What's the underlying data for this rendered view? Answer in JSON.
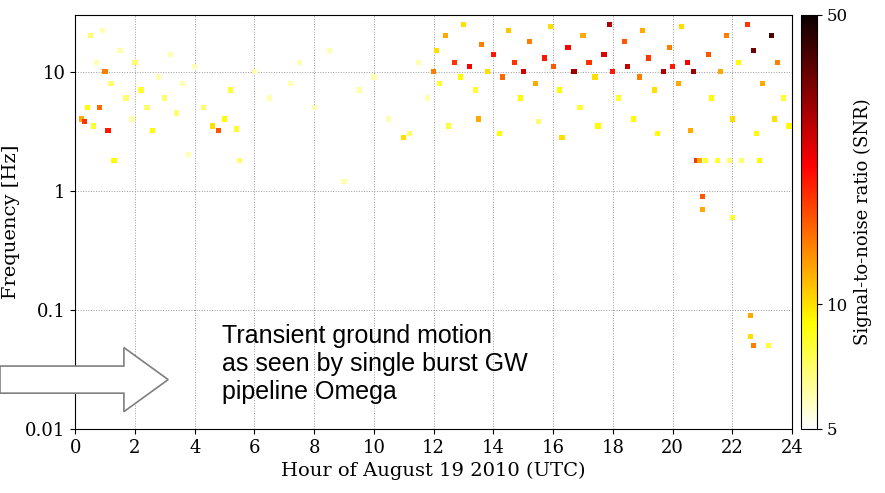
{
  "chart_data": {
    "type": "scatter",
    "xlabel": "Hour of August 19 2010 (UTC)",
    "ylabel": "Frequency [Hz]",
    "annotation": "Transient ground motion\nas seen by single burst GW\npipeline Omega",
    "log": "y",
    "grid": true,
    "marker": "square",
    "xlim": [
      0,
      24
    ],
    "xticks": [
      0,
      2,
      4,
      6,
      8,
      10,
      12,
      14,
      16,
      18,
      20,
      22,
      24
    ],
    "ylim": [
      0.01,
      30
    ],
    "yticks": [
      0.01,
      0.1,
      1,
      10
    ],
    "colorbar": {
      "label": "Signal-to-noise ratio (SNR)",
      "range": [
        5,
        50
      ],
      "ticks": [
        5,
        10,
        50
      ],
      "log": true
    },
    "points": [
      [
        0.2,
        4,
        12
      ],
      [
        0.3,
        3.8,
        18
      ],
      [
        0.4,
        5,
        9
      ],
      [
        0.5,
        20,
        7
      ],
      [
        0.6,
        3.5,
        8
      ],
      [
        0.7,
        12,
        6
      ],
      [
        0.8,
        5,
        15
      ],
      [
        0.9,
        22,
        6
      ],
      [
        1.0,
        10,
        14
      ],
      [
        1.1,
        3.2,
        20
      ],
      [
        1.2,
        8,
        7
      ],
      [
        1.3,
        1.8,
        9
      ],
      [
        1.5,
        15,
        6
      ],
      [
        1.7,
        6,
        7
      ],
      [
        1.9,
        4,
        6
      ],
      [
        2.0,
        12,
        7
      ],
      [
        2.2,
        7,
        8
      ],
      [
        2.4,
        5,
        7
      ],
      [
        2.6,
        3.2,
        9
      ],
      [
        2.8,
        9,
        6
      ],
      [
        3.0,
        6,
        7
      ],
      [
        3.2,
        14,
        6
      ],
      [
        3.4,
        4.5,
        7
      ],
      [
        3.6,
        8,
        6
      ],
      [
        3.8,
        2,
        6
      ],
      [
        4.0,
        11,
        6
      ],
      [
        4.3,
        5,
        7
      ],
      [
        4.6,
        3.5,
        10
      ],
      [
        4.8,
        3.2,
        16
      ],
      [
        5.0,
        4,
        9
      ],
      [
        5.2,
        7,
        8
      ],
      [
        5.4,
        3.3,
        8
      ],
      [
        5.5,
        1.8,
        7
      ],
      [
        6.0,
        10,
        6
      ],
      [
        6.5,
        6,
        6
      ],
      [
        7.2,
        8,
        6
      ],
      [
        7.5,
        12,
        6
      ],
      [
        8.0,
        5,
        6
      ],
      [
        8.5,
        15,
        6
      ],
      [
        9.0,
        1.2,
        6
      ],
      [
        9.5,
        7,
        6
      ],
      [
        10.0,
        9,
        6
      ],
      [
        10.5,
        4,
        6
      ],
      [
        11.0,
        2.8,
        10
      ],
      [
        11.2,
        3,
        7
      ],
      [
        11.5,
        12,
        6
      ],
      [
        11.8,
        6,
        6
      ],
      [
        12.0,
        10,
        14
      ],
      [
        12.1,
        15,
        10
      ],
      [
        12.2,
        8,
        8
      ],
      [
        12.4,
        20,
        12
      ],
      [
        12.5,
        3.5,
        8
      ],
      [
        12.7,
        12,
        18
      ],
      [
        12.9,
        9,
        9
      ],
      [
        13.0,
        25,
        10
      ],
      [
        13.2,
        11,
        22
      ],
      [
        13.4,
        7,
        8
      ],
      [
        13.5,
        4,
        12
      ],
      [
        13.6,
        17,
        14
      ],
      [
        13.8,
        10,
        10
      ],
      [
        14.0,
        14,
        20
      ],
      [
        14.2,
        3,
        9
      ],
      [
        14.3,
        9,
        15
      ],
      [
        14.5,
        22,
        11
      ],
      [
        14.7,
        12,
        18
      ],
      [
        14.9,
        6,
        9
      ],
      [
        15.0,
        10,
        25
      ],
      [
        15.2,
        18,
        14
      ],
      [
        15.4,
        8,
        12
      ],
      [
        15.5,
        3.8,
        7
      ],
      [
        15.7,
        13,
        20
      ],
      [
        15.9,
        24,
        10
      ],
      [
        16.0,
        11,
        16
      ],
      [
        16.2,
        7,
        9
      ],
      [
        16.3,
        2.8,
        10
      ],
      [
        16.5,
        16,
        22
      ],
      [
        16.7,
        10,
        30
      ],
      [
        16.9,
        5,
        8
      ],
      [
        17.0,
        20,
        12
      ],
      [
        17.2,
        12,
        18
      ],
      [
        17.4,
        9,
        10
      ],
      [
        17.5,
        3.5,
        9
      ],
      [
        17.7,
        14,
        24
      ],
      [
        17.9,
        25,
        28
      ],
      [
        18.0,
        10,
        20
      ],
      [
        18.2,
        6,
        8
      ],
      [
        18.4,
        18,
        16
      ],
      [
        18.5,
        11,
        26
      ],
      [
        18.7,
        4,
        9
      ],
      [
        18.9,
        9,
        14
      ],
      [
        19.0,
        22,
        12
      ],
      [
        19.2,
        13,
        18
      ],
      [
        19.4,
        7,
        10
      ],
      [
        19.5,
        3,
        9
      ],
      [
        19.7,
        10,
        28
      ],
      [
        19.9,
        16,
        14
      ],
      [
        20.0,
        11,
        20
      ],
      [
        20.2,
        8,
        12
      ],
      [
        20.3,
        24,
        10
      ],
      [
        20.5,
        12,
        22
      ],
      [
        20.6,
        3.2,
        12
      ],
      [
        20.7,
        10,
        30
      ],
      [
        20.8,
        1.8,
        18
      ],
      [
        20.9,
        1.8,
        12
      ],
      [
        21.0,
        0.9,
        16
      ],
      [
        21.0,
        0.7,
        12
      ],
      [
        21.1,
        1.8,
        8
      ],
      [
        21.2,
        14,
        16
      ],
      [
        21.3,
        6,
        9
      ],
      [
        21.5,
        1.8,
        8
      ],
      [
        21.6,
        10,
        12
      ],
      [
        21.8,
        20,
        14
      ],
      [
        21.9,
        1.8,
        7
      ],
      [
        22.0,
        0.6,
        8
      ],
      [
        22.0,
        4,
        10
      ],
      [
        22.2,
        12,
        9
      ],
      [
        22.3,
        1.8,
        7
      ],
      [
        22.5,
        25,
        18
      ],
      [
        22.6,
        0.09,
        12
      ],
      [
        22.6,
        0.06,
        10
      ],
      [
        22.7,
        0.05,
        14
      ],
      [
        22.7,
        15,
        35
      ],
      [
        22.8,
        3,
        9
      ],
      [
        22.9,
        1.8,
        9
      ],
      [
        23.0,
        8,
        12
      ],
      [
        23.2,
        0.05,
        8
      ],
      [
        23.3,
        20,
        40
      ],
      [
        23.4,
        4,
        10
      ],
      [
        23.5,
        12,
        14
      ],
      [
        23.7,
        6,
        8
      ],
      [
        23.9,
        3.5,
        9
      ]
    ]
  }
}
